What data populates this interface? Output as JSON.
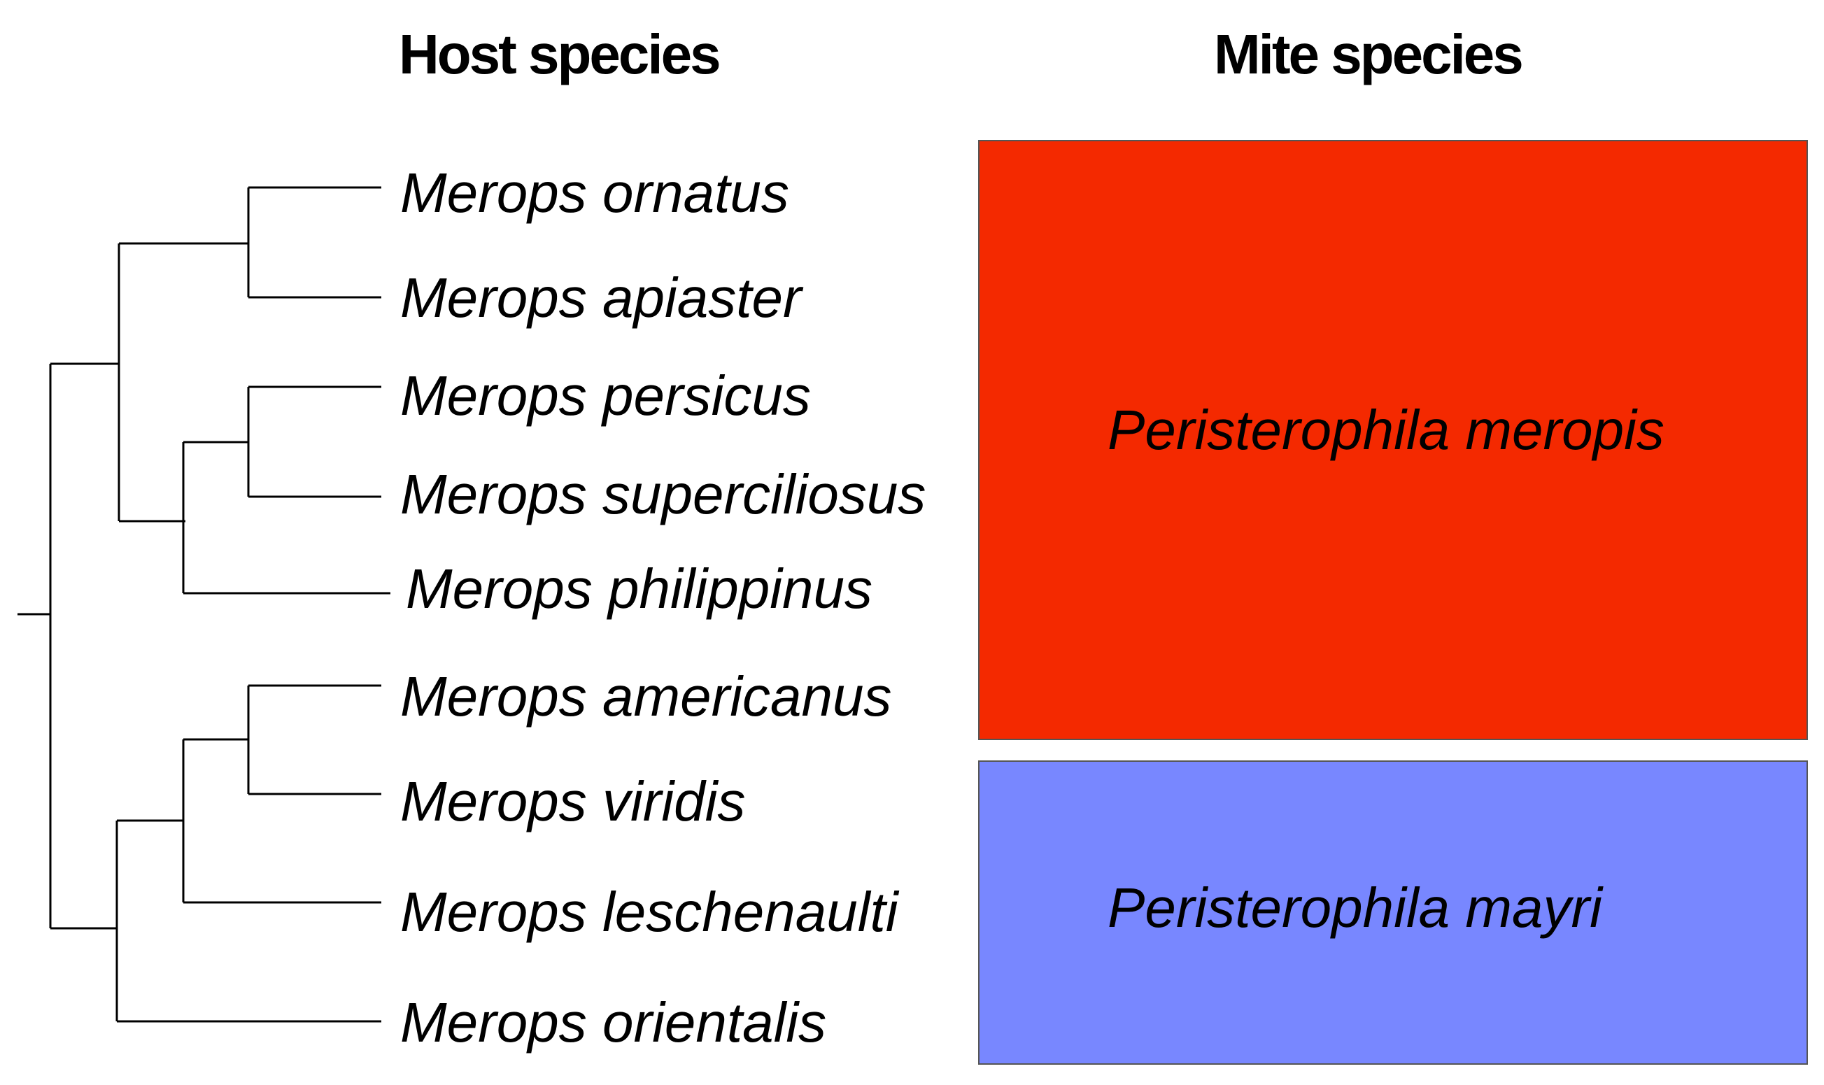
{
  "headers": {
    "host": "Host species",
    "mite": "Mite species"
  },
  "hosts": [
    "Merops ornatus",
    "Merops apiaster",
    "Merops persicus",
    "Merops superciliosus",
    "Merops philippinus",
    "Merops americanus",
    "Merops viridis",
    "Merops leschenaulti",
    "Merops orientalis"
  ],
  "mites": [
    {
      "name": "Peristerophila meropis",
      "color": "#f42900"
    },
    {
      "name": "Peristerophila mayri",
      "color": "#7887ff"
    }
  ]
}
